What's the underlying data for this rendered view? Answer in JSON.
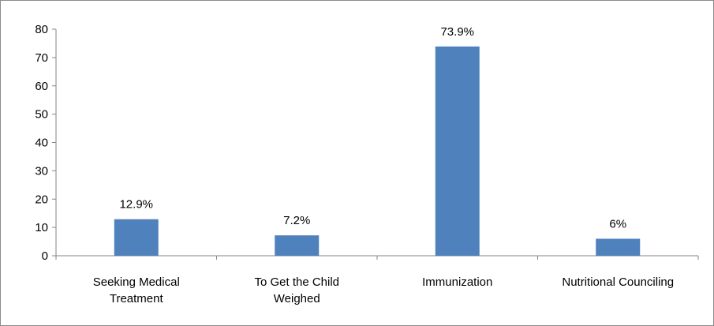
{
  "chart_data": {
    "type": "bar",
    "categories": [
      [
        "Seeking Medical",
        "Treatment"
      ],
      [
        "To Get the Child",
        "Weighed"
      ],
      [
        "Immunization"
      ],
      [
        "Nutritional Counciling"
      ]
    ],
    "values": [
      12.9,
      7.2,
      73.9,
      6
    ],
    "data_labels": [
      "12.9%",
      "7.2%",
      "73.9%",
      "6%"
    ],
    "yticks": [
      0,
      10,
      20,
      30,
      40,
      50,
      60,
      70,
      80
    ],
    "ylim": [
      0,
      80
    ],
    "grid": false,
    "legend": "none",
    "bar_color": "#4f81bd",
    "axis_color": "#868686"
  }
}
